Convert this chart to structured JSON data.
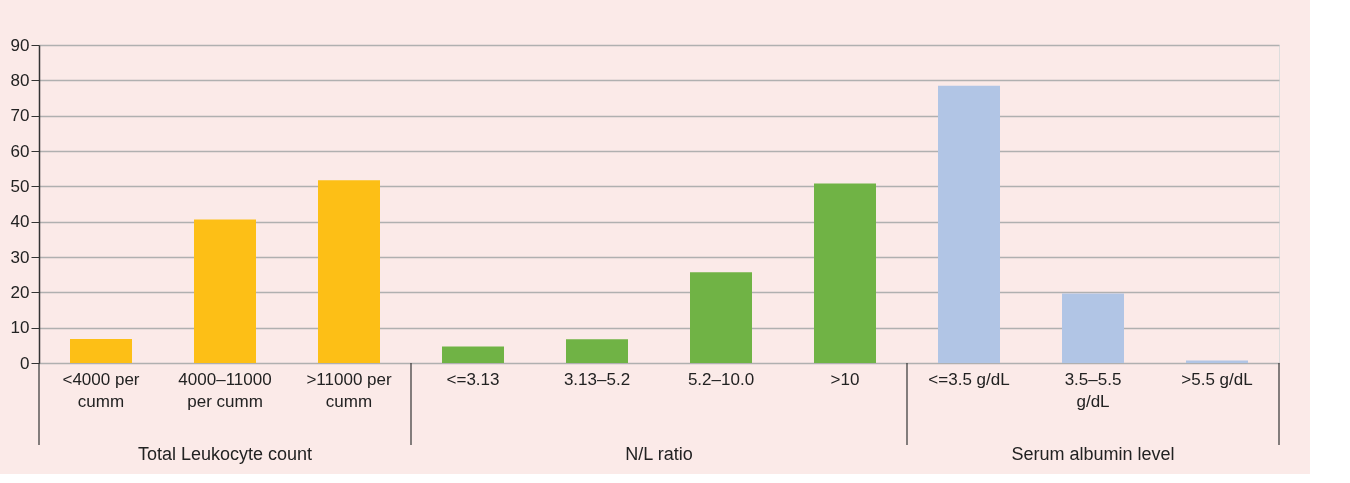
{
  "chart_data": {
    "type": "bar",
    "categories": [
      "<4000 per cumm",
      "4000–11000 per cumm",
      ">11000 per cumm",
      "<=3.13",
      "3.13–5.2",
      "5.2–10.0",
      ">10",
      "<=3.5 g/dL",
      "3.5–5.5 g/dL",
      ">5.5 g/dL"
    ],
    "series": [
      {
        "color": "#fdbf16",
        "values": [
          6.8,
          40.6,
          51.7,
          null,
          null,
          null,
          null,
          null,
          null,
          null
        ]
      },
      {
        "color": "#70b345",
        "values": [
          null,
          null,
          null,
          4.7,
          6.7,
          25.7,
          50.8,
          null,
          null,
          null
        ]
      },
      {
        "color": "#b1c5e5",
        "values": [
          null,
          null,
          null,
          null,
          null,
          null,
          null,
          78.5,
          19.7,
          0.7
        ]
      }
    ],
    "annotations": [
      "Total Leukocyte count",
      "N/L ratio",
      "Serum albumin level"
    ],
    "ylim": [
      0,
      90
    ],
    "yticks": [
      0,
      10,
      20,
      30,
      40,
      50,
      60,
      70,
      80,
      90
    ],
    "grid": "y",
    "legend": false
  }
}
